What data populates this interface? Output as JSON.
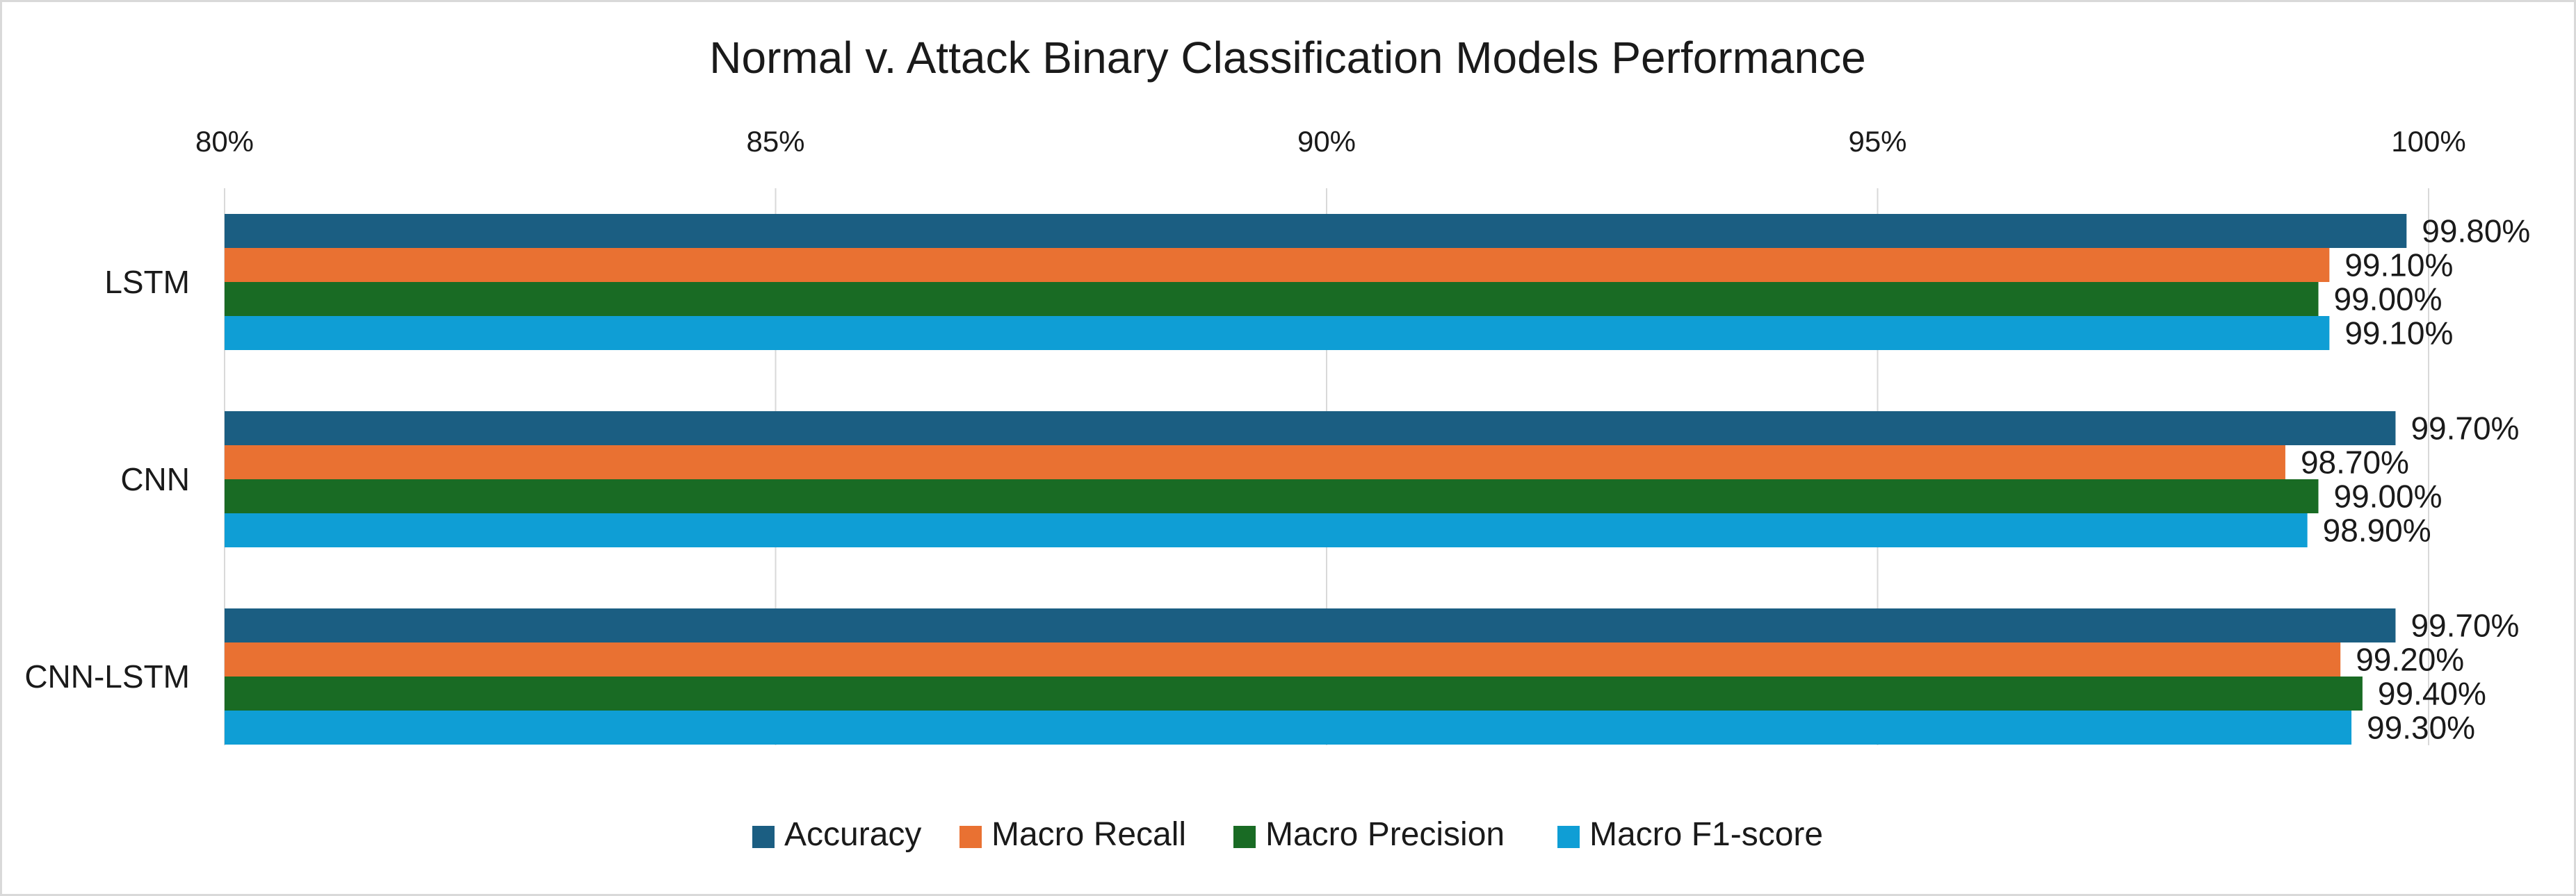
{
  "chart_data": {
    "type": "bar",
    "orientation": "horizontal",
    "title": "Normal v. Attack Binary Classification Models Performance",
    "categories": [
      "LSTM",
      "CNN",
      "CNN-LSTM"
    ],
    "xlim": [
      80,
      100
    ],
    "x_ticks": [
      {
        "value": 80,
        "label": "80%"
      },
      {
        "value": 85,
        "label": "85%"
      },
      {
        "value": 90,
        "label": "90%"
      },
      {
        "value": 95,
        "label": "95%"
      },
      {
        "value": 100,
        "label": "100%"
      }
    ],
    "x_axis_position": "top",
    "grid": true,
    "legend_position": "bottom",
    "series": [
      {
        "name": "Accuracy",
        "color": "#1b5e82",
        "values": [
          99.8,
          99.7,
          99.7
        ],
        "labels": [
          "99.80%",
          "99.70%",
          "99.70%"
        ]
      },
      {
        "name": "Macro Recall",
        "color": "#e97132",
        "values": [
          99.1,
          98.7,
          99.2
        ],
        "labels": [
          "99.10%",
          "98.70%",
          "99.20%"
        ]
      },
      {
        "name": "Macro Precision",
        "color": "#196b24",
        "values": [
          99.0,
          99.0,
          99.4
        ],
        "labels": [
          "99.00%",
          "99.00%",
          "99.40%"
        ]
      },
      {
        "name": "Macro F1-score",
        "color": "#0f9ed5",
        "values": [
          99.1,
          98.9,
          99.3
        ],
        "labels": [
          "99.10%",
          "98.90%",
          "99.30%"
        ]
      }
    ]
  }
}
